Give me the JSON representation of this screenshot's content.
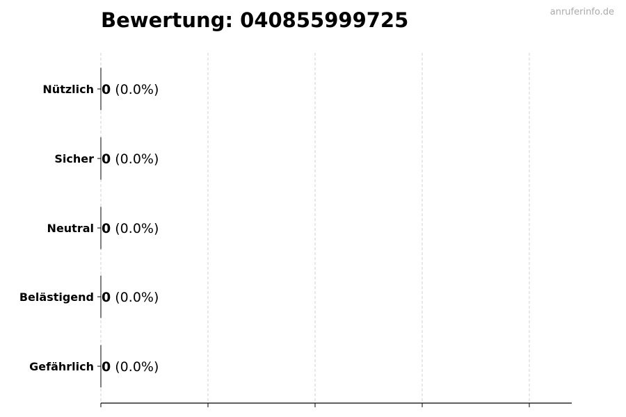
{
  "chart_data": {
    "type": "bar",
    "orientation": "horizontal",
    "title": "Bewertung: 040855999725",
    "categories": [
      "Nützlich",
      "Sicher",
      "Neutral",
      "Belästigend",
      "Gefährlich"
    ],
    "values": [
      0,
      0,
      0,
      0,
      0
    ],
    "data_labels": [
      {
        "count": "0",
        "percent": "(0.0%)"
      },
      {
        "count": "0",
        "percent": "(0.0%)"
      },
      {
        "count": "0",
        "percent": "(0.0%)"
      },
      {
        "count": "0",
        "percent": "(0.0%)"
      },
      {
        "count": "0",
        "percent": "(0.0%)"
      }
    ],
    "xlabel": "",
    "ylabel": "",
    "x_tick_labels_shown": false,
    "grid": "vertical dashed",
    "bar_edge_color": "#000000"
  },
  "watermark": "anruferinfo.de"
}
